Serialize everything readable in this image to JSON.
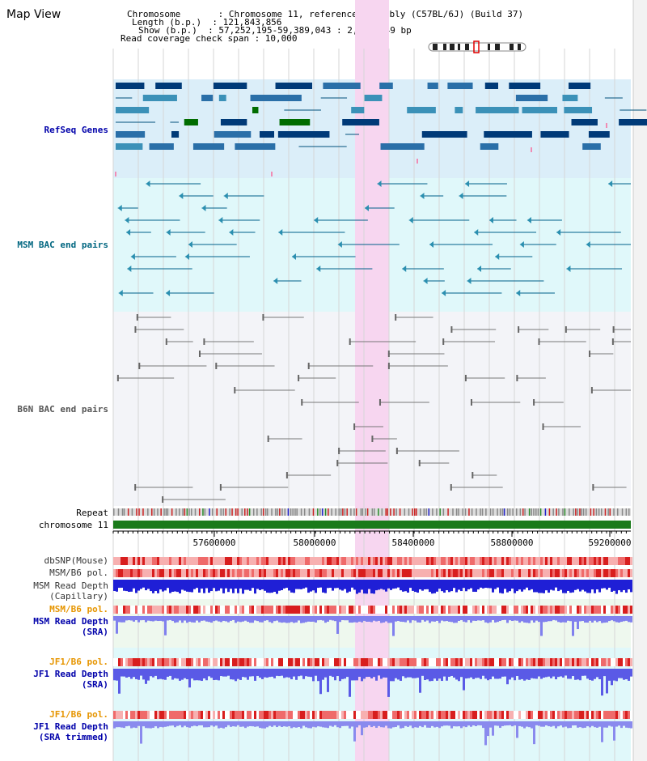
{
  "view_title": "Map View",
  "info_lines": [
    "Chromosome       : Chromosome 11, reference assembly (C57BL/6J) (Build 37)",
    "Length (b.p.)  : 121,843,856",
    "Show (b.p.)  : 57,252,195-59,389,043 : 2,136,849 bp",
    "Read coverage check span : 10,000"
  ],
  "tracks": {
    "refseq": "RefSeq Genes",
    "msm_bac": "MSM BAC end pairs",
    "b6n_bac": "B6N BAC end pairs",
    "repeat": "Repeat",
    "chromosome": "chromosome 11",
    "dbsnp": "dbSNP(Mouse)",
    "msm_b6_pol_1": "MSM/B6 pol.",
    "msm_read_depth_cap_1": "MSM Read Depth",
    "msm_read_depth_cap_2": "(Capillary)",
    "msm_b6_pol_2": "MSM/B6 pol.",
    "msm_read_depth_sra_1": "MSM Read Depth",
    "msm_read_depth_sra_2": "(SRA)",
    "jf1_b6_pol_1": "JF1/B6 pol.",
    "jf1_read_depth_1": "JF1 Read Depth",
    "jf1_read_depth_2": "(SRA)",
    "jf1_b6_pol_2": "JF1/B6 pol.",
    "jf1_read_depth_trim_1": "JF1 Read Depth",
    "jf1_read_depth_trim_2": "(SRA trimmed)"
  },
  "ruler_ticks": [
    "57600000",
    "58000000",
    "58400000",
    "58800000",
    "59200000"
  ],
  "colors": {
    "track_label_blue": "#0000aa",
    "track_label_teal": "#006680",
    "track_label_gray": "#555555",
    "track_label_orange": "#e69500",
    "highlight": "#f7d6f0",
    "chromosome_bar": "#1a7a1a"
  }
}
